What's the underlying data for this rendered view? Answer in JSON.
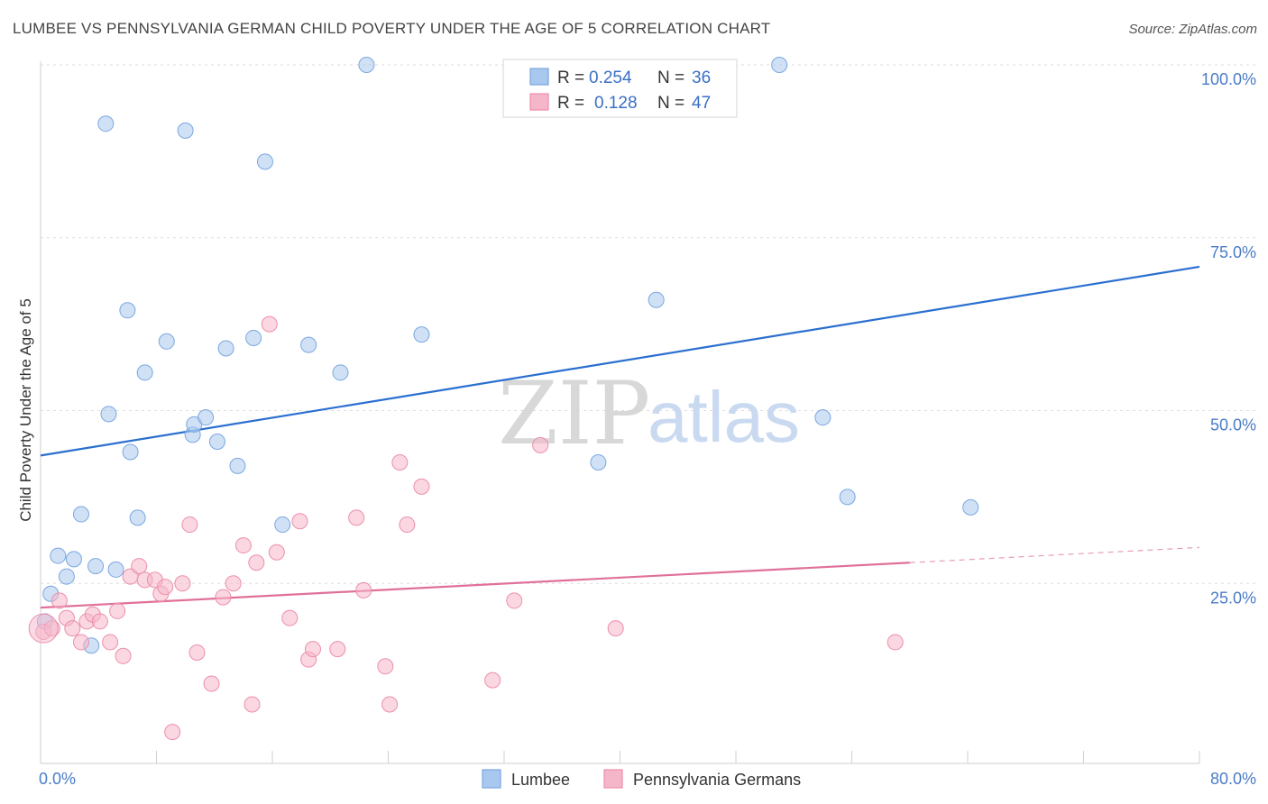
{
  "title": "LUMBEE VS PENNSYLVANIA GERMAN CHILD POVERTY UNDER THE AGE OF 5 CORRELATION CHART",
  "source": "Source: ZipAtlas.com",
  "watermark": {
    "zip": "ZIP",
    "atlas": "atlas"
  },
  "legend": {
    "rows": [
      {
        "r_label": "R =",
        "r_value": "0.254",
        "n_label": "N =",
        "n_value": "36",
        "color": "#a9c8ef"
      },
      {
        "r_label": "R =",
        "r_value": "0.128",
        "n_label": "N =",
        "n_value": "47",
        "color": "#f5b6c9"
      }
    ]
  },
  "bottom_legend": [
    {
      "label": "Lumbee",
      "color": "#a9c8ef"
    },
    {
      "label": "Pennsylvania Germans",
      "color": "#f5b6c9"
    }
  ],
  "chart_data": {
    "type": "scatter",
    "title": "LUMBEE VS PENNSYLVANIA GERMAN CHILD POVERTY UNDER THE AGE OF 5 CORRELATION CHART",
    "xlabel": "",
    "ylabel": "Child Poverty Under the Age of 5",
    "xlim": [
      0,
      80
    ],
    "ylim": [
      0,
      100
    ],
    "x_tick_labels": [
      "0.0%",
      "80.0%"
    ],
    "y_ticks": [
      25,
      50,
      75,
      100
    ],
    "y_tick_labels": [
      "25.0%",
      "50.0%",
      "75.0%",
      "100.0%"
    ],
    "grid": true,
    "legend_position": "top-center",
    "series": [
      {
        "name": "Lumbee",
        "color": "#a9c8ef",
        "stroke": "#7aa7e0",
        "line_color": "#2b6fd0",
        "trend": {
          "x": [
            0,
            80
          ],
          "y": [
            43.5,
            70.8
          ]
        },
        "points": [
          [
            0.3,
            19.5
          ],
          [
            0.7,
            23.5
          ],
          [
            1.2,
            29.0
          ],
          [
            1.8,
            26.0
          ],
          [
            2.3,
            28.5
          ],
          [
            2.8,
            35.0
          ],
          [
            3.5,
            16.0
          ],
          [
            3.8,
            27.5
          ],
          [
            4.5,
            91.5
          ],
          [
            5.2,
            27.0
          ],
          [
            6.0,
            64.5
          ],
          [
            6.2,
            44.0
          ],
          [
            4.7,
            49.5
          ],
          [
            6.7,
            34.5
          ],
          [
            7.2,
            55.5
          ],
          [
            8.7,
            60.0
          ],
          [
            10.0,
            90.5
          ],
          [
            10.5,
            46.5
          ],
          [
            10.6,
            48.0
          ],
          [
            11.4,
            49.0
          ],
          [
            12.2,
            45.5
          ],
          [
            12.8,
            59.0
          ],
          [
            13.6,
            42.0
          ],
          [
            14.7,
            60.5
          ],
          [
            15.5,
            86.0
          ],
          [
            16.7,
            33.5
          ],
          [
            18.5,
            59.5
          ],
          [
            20.7,
            55.5
          ],
          [
            22.5,
            100.0
          ],
          [
            26.3,
            61.0
          ],
          [
            38.5,
            42.5
          ],
          [
            42.5,
            66.0
          ],
          [
            51.0,
            100.0
          ],
          [
            54.0,
            49.0
          ],
          [
            55.7,
            37.5
          ],
          [
            64.2,
            36.0
          ]
        ]
      },
      {
        "name": "Pennsylvania Germans",
        "color": "#f5b6c9",
        "stroke": "#ec8fac",
        "line_color": "#e0709a",
        "trend": {
          "x": [
            0,
            60
          ],
          "y": [
            21.5,
            28.0
          ]
        },
        "trend_dashed": {
          "x": [
            60,
            80
          ],
          "y": [
            28.0,
            30.2
          ]
        },
        "points": [
          [
            0.2,
            18.0
          ],
          [
            0.8,
            18.5
          ],
          [
            1.3,
            22.5
          ],
          [
            1.8,
            20.0
          ],
          [
            2.2,
            18.5
          ],
          [
            2.8,
            16.5
          ],
          [
            3.2,
            19.5
          ],
          [
            3.6,
            20.5
          ],
          [
            4.1,
            19.5
          ],
          [
            4.8,
            16.5
          ],
          [
            5.3,
            21.0
          ],
          [
            5.7,
            14.5
          ],
          [
            6.2,
            26.0
          ],
          [
            6.8,
            27.5
          ],
          [
            7.2,
            25.5
          ],
          [
            7.9,
            25.5
          ],
          [
            8.3,
            23.5
          ],
          [
            8.6,
            24.5
          ],
          [
            9.1,
            3.5
          ],
          [
            9.8,
            25.0
          ],
          [
            10.3,
            33.5
          ],
          [
            10.8,
            15.0
          ],
          [
            11.8,
            10.5
          ],
          [
            12.6,
            23.0
          ],
          [
            13.3,
            25.0
          ],
          [
            14.0,
            30.5
          ],
          [
            14.6,
            7.5
          ],
          [
            14.9,
            28.0
          ],
          [
            16.3,
            29.5
          ],
          [
            17.2,
            20.0
          ],
          [
            17.9,
            34.0
          ],
          [
            18.5,
            14.0
          ],
          [
            18.8,
            15.5
          ],
          [
            20.5,
            15.5
          ],
          [
            21.8,
            34.5
          ],
          [
            22.3,
            24.0
          ],
          [
            23.8,
            13.0
          ],
          [
            24.1,
            7.5
          ],
          [
            24.8,
            42.5
          ],
          [
            25.3,
            33.5
          ],
          [
            26.3,
            39.0
          ],
          [
            31.2,
            11.0
          ],
          [
            32.7,
            22.5
          ],
          [
            34.5,
            45.0
          ],
          [
            39.7,
            18.5
          ],
          [
            59.0,
            16.5
          ],
          [
            15.8,
            62.5
          ]
        ]
      }
    ]
  }
}
